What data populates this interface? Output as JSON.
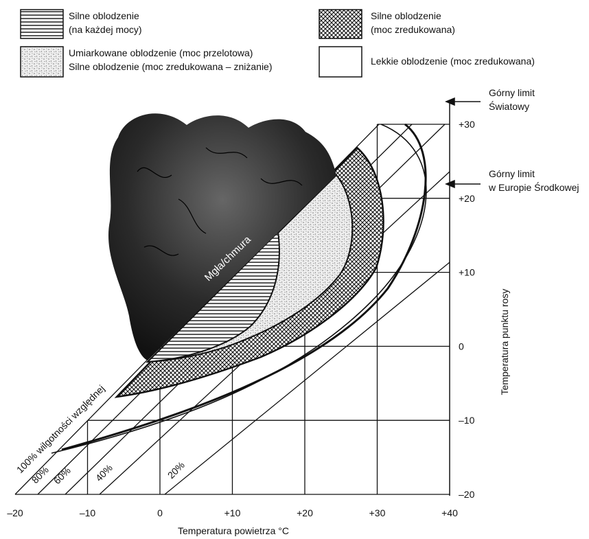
{
  "legend": [
    {
      "lines": [
        "Silne oblodzenie",
        "(na każdej mocy)"
      ]
    },
    {
      "lines": [
        "Umiarkowane oblodzenie (moc przelotowa)",
        "Silne oblodzenie (moc zredukowana – zniżanie)"
      ]
    },
    {
      "lines": [
        "Silne oblodzenie",
        "(moc zredukowana)"
      ]
    },
    {
      "lines": [
        "Lekkie oblodzenie (moc zredukowana)"
      ]
    }
  ],
  "x_axis": {
    "title": "Temperatura powietrza °C",
    "ticks": [
      "–20",
      "–10",
      "0",
      "+10",
      "+20",
      "+30",
      "+40"
    ]
  },
  "y_axis": {
    "title": "Temperatura punktu rosy",
    "ticks": [
      "–20",
      "–10",
      "0",
      "+10",
      "+20",
      "+30"
    ]
  },
  "limits": [
    {
      "lines": [
        "Górny limit",
        "Światowy"
      ]
    },
    {
      "lines": [
        "Górny limit",
        "w Europie Środkowej"
      ]
    }
  ],
  "humidity_lines": [
    "100% wilgotności względnej",
    "80%",
    "60%",
    "40%",
    "20%"
  ],
  "cloud_label": "Mgła/chmura"
}
